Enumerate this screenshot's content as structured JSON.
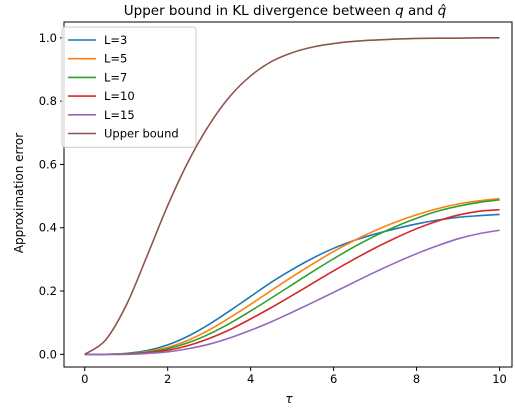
{
  "chart_data": {
    "type": "line",
    "title_main": "Upper bound in KL divergence between",
    "title_q": "q",
    "title_and": "and",
    "title_qhat": "q̂",
    "xlabel": "τ",
    "ylabel": "Approximation error",
    "xlim": [
      -0.5,
      10.3
    ],
    "ylim": [
      -0.04,
      1.05
    ],
    "xticks": [
      0,
      2,
      4,
      6,
      8,
      10
    ],
    "xtick_labels": [
      "0",
      "2",
      "4",
      "6",
      "8",
      "10"
    ],
    "yticks": [
      0.0,
      0.2,
      0.4,
      0.6,
      0.8,
      1.0
    ],
    "ytick_labels": [
      "0.0",
      "0.2",
      "0.4",
      "0.6",
      "0.8",
      "1.0"
    ],
    "grid": false,
    "legend_position": "top-left",
    "x": [
      0,
      0.5,
      1,
      1.5,
      2,
      2.5,
      3,
      3.5,
      4,
      4.5,
      5,
      5.5,
      6,
      6.5,
      7,
      7.5,
      8,
      8.5,
      9,
      9.5,
      10
    ],
    "series": [
      {
        "name": "L=3",
        "color": "#1f77b4",
        "values": [
          0.0,
          0.0,
          0.003,
          0.012,
          0.03,
          0.058,
          0.095,
          0.138,
          0.183,
          0.228,
          0.268,
          0.304,
          0.335,
          0.36,
          0.38,
          0.397,
          0.412,
          0.424,
          0.433,
          0.438,
          0.442
        ]
      },
      {
        "name": "L=5",
        "color": "#ff7f0e",
        "values": [
          0.0,
          0.0,
          0.002,
          0.009,
          0.022,
          0.045,
          0.077,
          0.116,
          0.158,
          0.202,
          0.245,
          0.286,
          0.325,
          0.36,
          0.391,
          0.418,
          0.441,
          0.46,
          0.475,
          0.485,
          0.492
        ]
      },
      {
        "name": "L=7",
        "color": "#2ca02c",
        "values": [
          0.0,
          0.0,
          0.002,
          0.007,
          0.018,
          0.037,
          0.064,
          0.098,
          0.137,
          0.178,
          0.22,
          0.262,
          0.302,
          0.34,
          0.374,
          0.404,
          0.43,
          0.452,
          0.468,
          0.48,
          0.488
        ]
      },
      {
        "name": "L=10",
        "color": "#d62728",
        "values": [
          0.0,
          0.0,
          0.001,
          0.005,
          0.013,
          0.028,
          0.05,
          0.078,
          0.112,
          0.148,
          0.186,
          0.225,
          0.264,
          0.301,
          0.336,
          0.368,
          0.397,
          0.421,
          0.44,
          0.452,
          0.457
        ]
      },
      {
        "name": "L=15",
        "color": "#9467bd",
        "values": [
          0.0,
          0.0,
          0.0,
          0.003,
          0.008,
          0.018,
          0.032,
          0.052,
          0.076,
          0.103,
          0.133,
          0.164,
          0.196,
          0.228,
          0.26,
          0.29,
          0.318,
          0.343,
          0.365,
          0.381,
          0.392
        ]
      },
      {
        "name": "Upper bound",
        "color": "#8c564b",
        "values": [
          0.0,
          0.045,
          0.155,
          0.31,
          0.47,
          0.61,
          0.725,
          0.815,
          0.88,
          0.925,
          0.953,
          0.971,
          0.982,
          0.989,
          0.993,
          0.996,
          0.998,
          0.999,
          0.999,
          1.0,
          1.0
        ]
      }
    ]
  }
}
